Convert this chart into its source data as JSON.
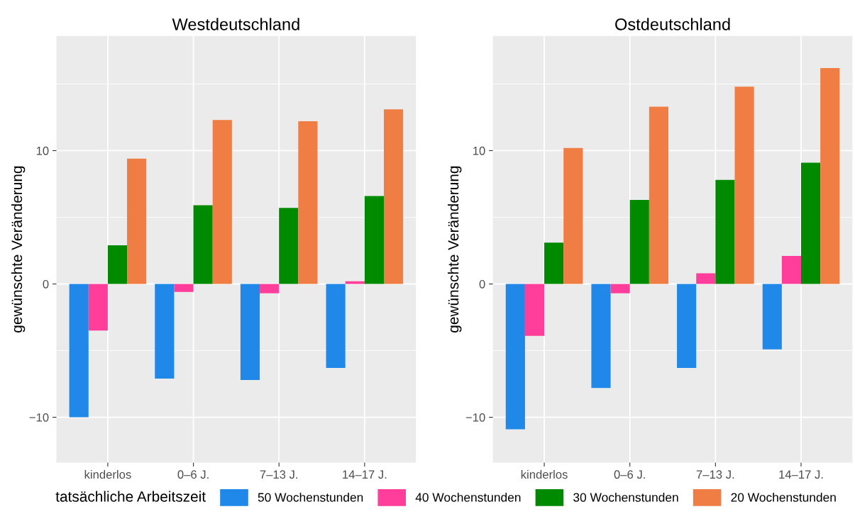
{
  "chart_data": [
    {
      "type": "bar",
      "title": "Westdeutschland",
      "ylabel": "gewünschte Veränderung",
      "categories": [
        "kinderlos",
        "0–6 J.",
        "7–13 J.",
        "14–17 J."
      ],
      "series": [
        {
          "name": "50 Wochenstunden",
          "color": "#1f88e8",
          "values": [
            -10.0,
            -7.1,
            -7.2,
            -6.3
          ]
        },
        {
          "name": "40 Wochenstunden",
          "color": "#ff3d9a",
          "values": [
            -3.5,
            -0.6,
            -0.7,
            0.2
          ]
        },
        {
          "name": "30 Wochenstunden",
          "color": "#008a00",
          "values": [
            2.9,
            5.9,
            5.7,
            6.6
          ]
        },
        {
          "name": "20 Wochenstunden",
          "color": "#ef7d44",
          "values": [
            9.4,
            12.3,
            12.2,
            13.1
          ]
        }
      ],
      "ylim": [
        -13.4,
        18.6
      ],
      "yticks": [
        {
          "value": -10,
          "label": "−10"
        },
        0,
        10
      ],
      "grid": true,
      "legend": "bottom",
      "legend_title": "tatsächliche Arbeitszeit"
    },
    {
      "type": "bar",
      "title": "Ostdeutschland",
      "ylabel": "gewünschte Veränderung",
      "categories": [
        "kinderlos",
        "0–6 J.",
        "7–13 J.",
        "14–17 J."
      ],
      "series": [
        {
          "color": "#1f88e8",
          "values": [
            -10.9,
            -7.8,
            -6.3,
            -4.9
          ]
        },
        {
          "color": "#ff3d9a",
          "values": [
            -3.9,
            -0.7,
            0.8,
            2.1
          ]
        },
        {
          "color": "#008a00",
          "values": [
            3.1,
            6.3,
            7.8,
            9.1
          ]
        },
        {
          "color": "#ef7d44",
          "values": [
            10.2,
            13.3,
            14.8,
            16.2
          ]
        }
      ],
      "ylim": [
        -13.4,
        18.6
      ],
      "yticks": [
        {
          "value": -10,
          "label": "−10"
        },
        0,
        10
      ],
      "grid": true
    }
  ]
}
